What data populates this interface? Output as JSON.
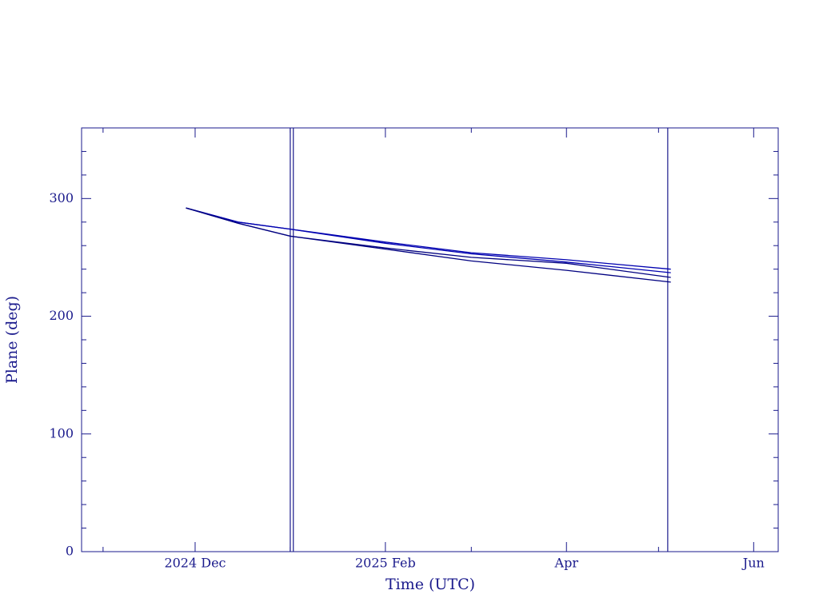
{
  "chart_data": {
    "type": "line",
    "x_label": "Time (UTC)",
    "y_label": "Plane (deg)",
    "x": [
      "2024-11-28",
      "2024-12-15",
      "2025-01-01",
      "2025-02-01",
      "2025-03-01",
      "2025-04-01",
      "2025-05-05"
    ],
    "series": [
      {
        "color": "#0000b0",
        "values": [
          292,
          280,
          274,
          263,
          254,
          248,
          240
        ]
      },
      {
        "color": "#0000b0",
        "values": [
          292,
          280,
          274,
          262,
          253,
          246,
          237
        ]
      },
      {
        "color": "#000080",
        "values": [
          292,
          279,
          268,
          258,
          250,
          245,
          233
        ]
      },
      {
        "color": "#000080",
        "values": [
          292,
          279,
          268,
          257,
          247,
          239,
          229
        ]
      }
    ],
    "vlines": [
      "2025-01-01",
      "2025-01-02",
      "2025-05-04"
    ],
    "xlim": [
      "2024-10-25",
      "2025-06-09"
    ],
    "xticks": [
      {
        "value": "2024-12-01",
        "label": "2024 Dec"
      },
      {
        "value": "2025-02-01",
        "label": "2025 Feb"
      },
      {
        "value": "2025-04-01",
        "label": "Apr"
      },
      {
        "value": "2025-06-01",
        "label": "Jun"
      }
    ],
    "xminor": [
      "2024-11-01",
      "2025-01-01",
      "2025-03-01",
      "2025-05-01"
    ],
    "ylim": [
      0,
      360
    ],
    "yticks": [
      0,
      100,
      200,
      300
    ],
    "yminor": [
      20,
      40,
      60,
      80,
      120,
      140,
      160,
      180,
      220,
      240,
      260,
      280,
      320,
      340
    ],
    "color": "#1a1a8c"
  }
}
